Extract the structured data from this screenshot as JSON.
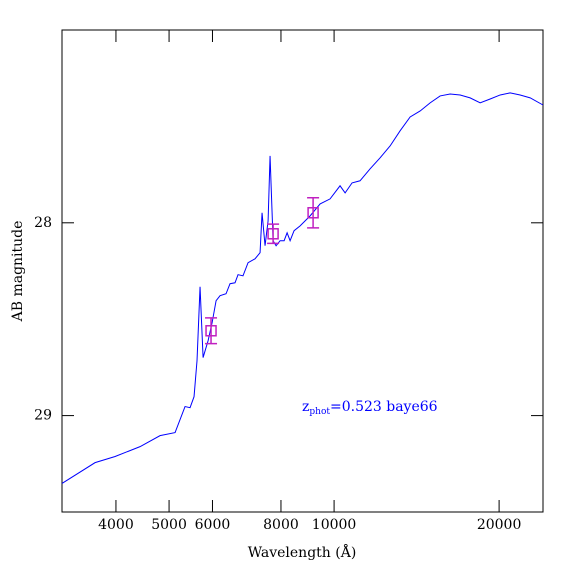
{
  "chart_data": {
    "type": "line",
    "x_label": "Wavelength (Å)",
    "y_label": "AB magnitude",
    "xlim": [
      3189,
      24050
    ],
    "xticks": [
      4000,
      5000,
      6000,
      8000,
      10000,
      20000
    ],
    "x_log": true,
    "ylim": [
      27.0,
      29.5
    ],
    "yticks": [
      28,
      29
    ],
    "y_inverted": true,
    "annotation": {
      "text": "z",
      "subscript": "phot",
      "suffix": "=0.523 baye66",
      "color": "#0000ff"
    },
    "series": [
      {
        "color": "#0000ff",
        "x": [
          3189,
          3664,
          3986,
          4426,
          4814,
          5128,
          5347,
          5461,
          5553,
          5623,
          5695,
          5768,
          5891,
          5991,
          6092,
          6194,
          6352,
          6459,
          6596,
          6680,
          6821,
          6967,
          7174,
          7328,
          7389,
          7483,
          7579,
          7642,
          7740,
          7838,
          7971,
          8107,
          8209,
          8313,
          8453,
          8670,
          9042,
          9430,
          9833,
          10254,
          10474,
          10785,
          11152,
          11634,
          12133,
          12656,
          13195,
          13763,
          14355,
          14969,
          15612,
          16282,
          16982,
          17708,
          18469,
          19263,
          20091,
          20954,
          21849,
          22789,
          24050
        ],
        "values": [
          29.352,
          29.244,
          29.212,
          29.161,
          29.104,
          29.088,
          28.953,
          28.959,
          28.902,
          28.715,
          28.332,
          28.699,
          28.611,
          28.518,
          28.404,
          28.378,
          28.368,
          28.316,
          28.311,
          28.269,
          28.275,
          28.207,
          28.187,
          28.155,
          27.948,
          28.119,
          27.99,
          27.653,
          28.093,
          28.119,
          28.093,
          28.093,
          28.052,
          28.093,
          28.041,
          28.016,
          27.964,
          27.902,
          27.876,
          27.808,
          27.845,
          27.793,
          27.782,
          27.72,
          27.663,
          27.601,
          27.523,
          27.451,
          27.42,
          27.378,
          27.342,
          27.332,
          27.337,
          27.352,
          27.378,
          27.358,
          27.337,
          27.326,
          27.337,
          27.352,
          27.389
        ]
      }
    ],
    "photometry": {
      "color": "#c020c0",
      "x": [
        5964,
        7740,
        9156
      ],
      "values": [
        28.56,
        28.057,
        27.948
      ],
      "errors": [
        0.067,
        0.05,
        0.078
      ]
    }
  }
}
